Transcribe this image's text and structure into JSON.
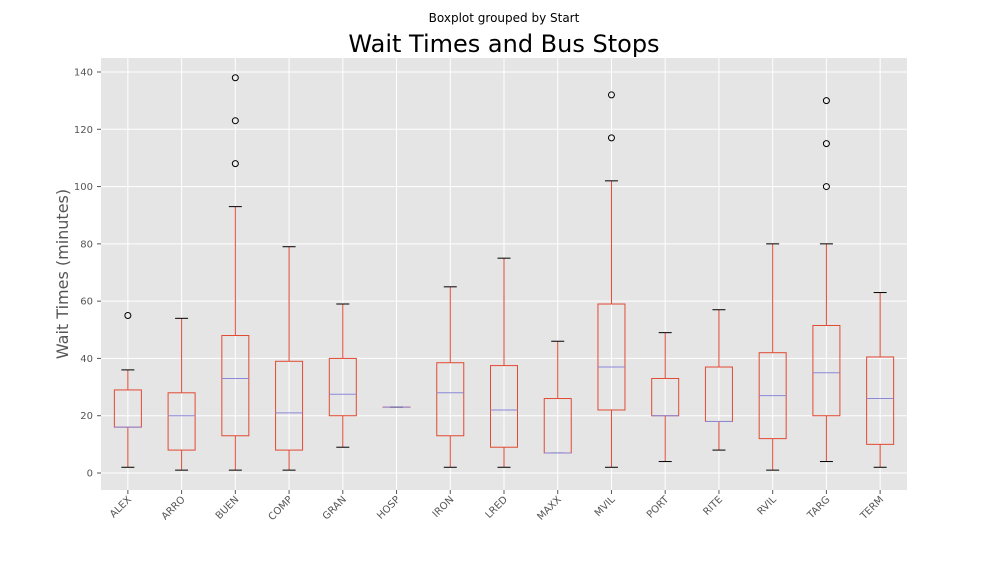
{
  "chart_data": {
    "type": "boxplot",
    "suptitle": "Boxplot grouped by Start",
    "title": "Wait Times and Bus Stops",
    "xlabel": "",
    "ylabel": "Wait Times (minutes)",
    "ylim": [
      -6,
      145
    ],
    "yticks": [
      0,
      20,
      40,
      60,
      80,
      100,
      120,
      140
    ],
    "grid": true,
    "colors": {
      "background": "#e5e5e5",
      "grid": "#ffffff",
      "box": "#e24a33",
      "median": "#8c88d8",
      "whisker_cap": "#000000",
      "flier": "#000000"
    },
    "categories": [
      "ALEX",
      "ARRO",
      "BUEN",
      "COMP",
      "GRAN",
      "HOSP",
      "IRON",
      "LRED",
      "MAXX",
      "MVIL",
      "PORT",
      "RITE",
      "RVIL",
      "TARG",
      "TERM"
    ],
    "boxes": [
      {
        "label": "ALEX",
        "whislo": 2,
        "q1": 16,
        "med": 16,
        "q3": 29,
        "whishi": 36,
        "fliers": [
          55
        ]
      },
      {
        "label": "ARRO",
        "whislo": 1,
        "q1": 8,
        "med": 20,
        "q3": 28,
        "whishi": 54,
        "fliers": []
      },
      {
        "label": "BUEN",
        "whislo": 1,
        "q1": 13,
        "med": 33,
        "q3": 48,
        "whishi": 93,
        "fliers": [
          108,
          123,
          138
        ]
      },
      {
        "label": "COMP",
        "whislo": 1,
        "q1": 8,
        "med": 21,
        "q3": 39,
        "whishi": 79,
        "fliers": []
      },
      {
        "label": "GRAN",
        "whislo": 9,
        "q1": 20,
        "med": 27.5,
        "q3": 40,
        "whishi": 59,
        "fliers": []
      },
      {
        "label": "HOSP",
        "whislo": 23,
        "q1": 23,
        "med": 23,
        "q3": 23,
        "whishi": 23,
        "fliers": []
      },
      {
        "label": "IRON",
        "whislo": 2,
        "q1": 13,
        "med": 28,
        "q3": 38.5,
        "whishi": 65,
        "fliers": []
      },
      {
        "label": "LRED",
        "whislo": 2,
        "q1": 9,
        "med": 22,
        "q3": 37.5,
        "whishi": 75,
        "fliers": []
      },
      {
        "label": "MAXX",
        "whislo": 7,
        "q1": 7,
        "med": 7,
        "q3": 26,
        "whishi": 46,
        "fliers": []
      },
      {
        "label": "MVIL",
        "whislo": 2,
        "q1": 22,
        "med": 37,
        "q3": 59,
        "whishi": 102,
        "fliers": [
          117,
          132
        ]
      },
      {
        "label": "PORT",
        "whislo": 4,
        "q1": 20,
        "med": 20,
        "q3": 33,
        "whishi": 49,
        "fliers": []
      },
      {
        "label": "RITE",
        "whislo": 8,
        "q1": 18,
        "med": 18,
        "q3": 37,
        "whishi": 57,
        "fliers": []
      },
      {
        "label": "RVIL",
        "whislo": 1,
        "q1": 12,
        "med": 27,
        "q3": 42,
        "whishi": 80,
        "fliers": []
      },
      {
        "label": "TARG",
        "whislo": 4,
        "q1": 20,
        "med": 35,
        "q3": 51.5,
        "whishi": 80,
        "fliers": [
          100,
          115,
          130
        ]
      },
      {
        "label": "TERM",
        "whislo": 2,
        "q1": 10,
        "med": 26,
        "q3": 40.5,
        "whishi": 63,
        "fliers": []
      }
    ]
  }
}
